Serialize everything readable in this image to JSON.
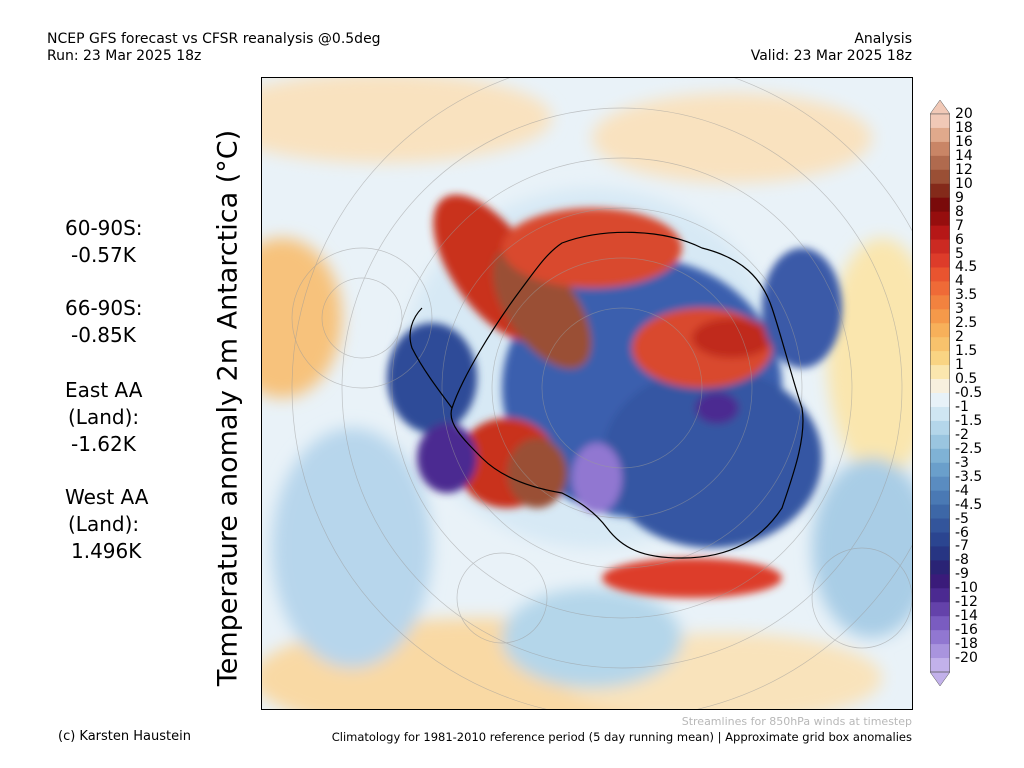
{
  "header": {
    "title_line1": "NCEP GFS forecast vs CFSR reanalysis @0.5deg",
    "title_line2": "Run: 23 Mar 2025 18z",
    "mode": "Analysis",
    "valid": "Valid: 23 Mar 2025 18z"
  },
  "map": {
    "ylabel": "Temperature anomaly 2m Antarctica (°C)"
  },
  "stats": [
    {
      "label": "60-90S:",
      "value": "-0.57K"
    },
    {
      "label": "66-90S:",
      "value": "-0.85K"
    },
    {
      "label": "East AA",
      "label2": "(Land):",
      "value": "-1.62K"
    },
    {
      "label": "West AA",
      "label2": "(Land):",
      "value": "1.496K"
    }
  ],
  "colorbar": {
    "labels": [
      "20",
      "18",
      "16",
      "14",
      "12",
      "10",
      "9",
      "8",
      "7",
      "6",
      "5",
      "4.5",
      "4",
      "3.5",
      "3",
      "2.5",
      "2",
      "1.5",
      "1",
      "0.5",
      "-0.5",
      "-1",
      "-1.5",
      "-2",
      "-2.5",
      "-3",
      "-3.5",
      "-4",
      "-4.5",
      "-5",
      "-6",
      "-7",
      "-8",
      "-9",
      "-10",
      "-12",
      "-14",
      "-16",
      "-18",
      "-20"
    ],
    "colors": [
      "#f1c9b7",
      "#e0a98c",
      "#c98566",
      "#b06a4e",
      "#9a4f35",
      "#842a1a",
      "#7a0a0a",
      "#960e0e",
      "#b61717",
      "#cc2a22",
      "#dd3c2a",
      "#e9542f",
      "#ef6a37",
      "#f2823f",
      "#f5994a",
      "#f7b05a",
      "#f8c26c",
      "#f9d483",
      "#fae6ae",
      "#f7f0de",
      "#e7f2f8",
      "#cfe6f2",
      "#b4d6ea",
      "#9ac5e0",
      "#7fb2d5",
      "#6a9fcb",
      "#5a8cc0",
      "#4a79b4",
      "#3d67a7",
      "#33559b",
      "#2b4590",
      "#273583",
      "#2a2375",
      "#3a1b7a",
      "#4b2a91",
      "#6442aa",
      "#7a5cc0",
      "#9177d1",
      "#a994de",
      "#c2b1ea"
    ]
  },
  "footer": {
    "streamlines": "Streamlines for 850hPa winds at timestep",
    "credit": "(c) Karsten Haustein",
    "climatology": "Climatology for 1981-2010 reference period (5 day running mean) | Approximate grid box anomalies"
  }
}
